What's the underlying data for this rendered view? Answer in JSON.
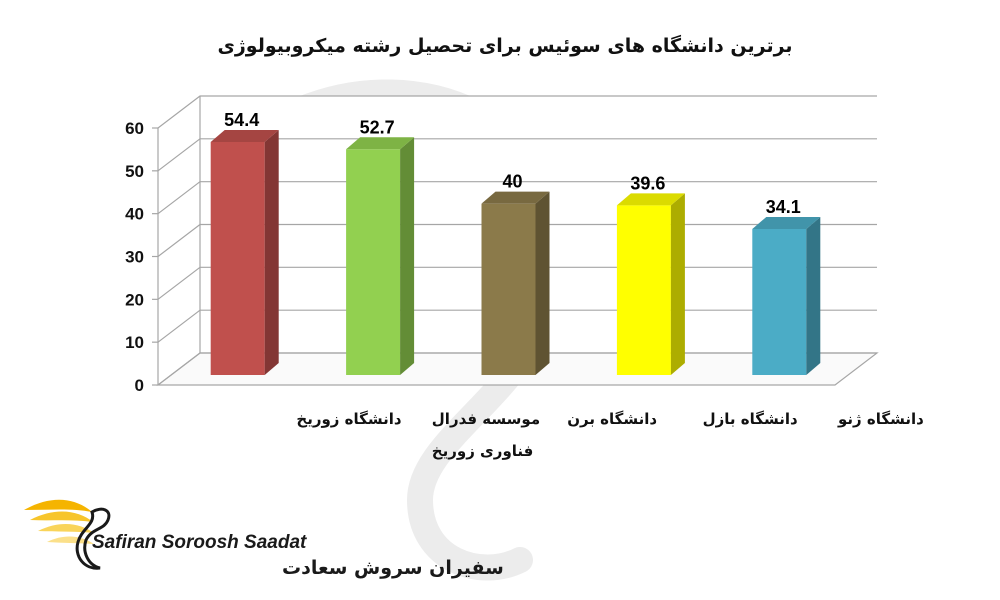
{
  "chart_data": {
    "type": "bar",
    "title": "برترین دانشگاه های سوئیس برای تحصیل رشته میکروبیولوژی",
    "categories": [
      [
        "دانشگاه زوریخ"
      ],
      [
        "موسسه فدرال",
        "فناوری زوریخ"
      ],
      [
        "دانشگاه برن"
      ],
      [
        "دانشگاه بازل"
      ],
      [
        "دانشگاه ژنو"
      ]
    ],
    "values": [
      54.4,
      52.7,
      40,
      39.6,
      34.1
    ],
    "value_labels": [
      "54.4",
      "52.7",
      "40",
      "39.6",
      "34.1"
    ],
    "colors": [
      "#c0504d",
      "#92d050",
      "#8b7a4a",
      "#ffff00",
      "#4bacc6"
    ],
    "ylim": [
      0,
      60
    ],
    "yticks": [
      "0",
      "10",
      "20",
      "30",
      "40",
      "50",
      "60"
    ],
    "grid": true,
    "style": "3d"
  },
  "logo": {
    "name_en": "Safiran Soroosh Saadat",
    "name_fa": "سفیران سروش سعادت"
  }
}
